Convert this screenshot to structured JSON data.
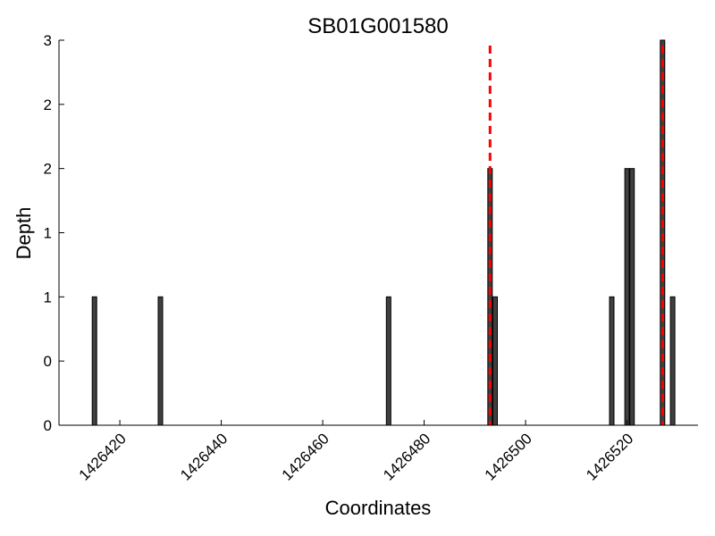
{
  "chart_data": {
    "type": "bar",
    "title": "SB01G001580",
    "xlabel": "Coordinates",
    "ylabel": "Depth",
    "xlim": [
      1426408,
      1426534
    ],
    "ylim": [
      0,
      3
    ],
    "x_ticks": [
      1426420,
      1426440,
      1426460,
      1426480,
      1426500,
      1426520
    ],
    "x_tick_labels": [
      "1426420",
      "1426440",
      "1426460",
      "1426480",
      "1426500",
      "1426520"
    ],
    "y_ticks": [
      0,
      0.5,
      1,
      1.5,
      2,
      2.5,
      3
    ],
    "y_tick_labels": [
      "0",
      "0",
      "1",
      "1",
      "2",
      "2",
      "3"
    ],
    "bar_color": "#404040",
    "series": [
      {
        "x": [
          1426415,
          1426428,
          1426473,
          1426493,
          1426494,
          1426517,
          1426520,
          1426521,
          1426527,
          1426529
        ],
        "values": [
          1,
          1,
          1,
          2,
          1,
          1,
          2,
          2,
          3,
          1
        ]
      }
    ],
    "reference_lines": {
      "color": "#ff0000",
      "style": "dashed",
      "x": [
        1426493,
        1426527
      ]
    },
    "grid": false
  }
}
